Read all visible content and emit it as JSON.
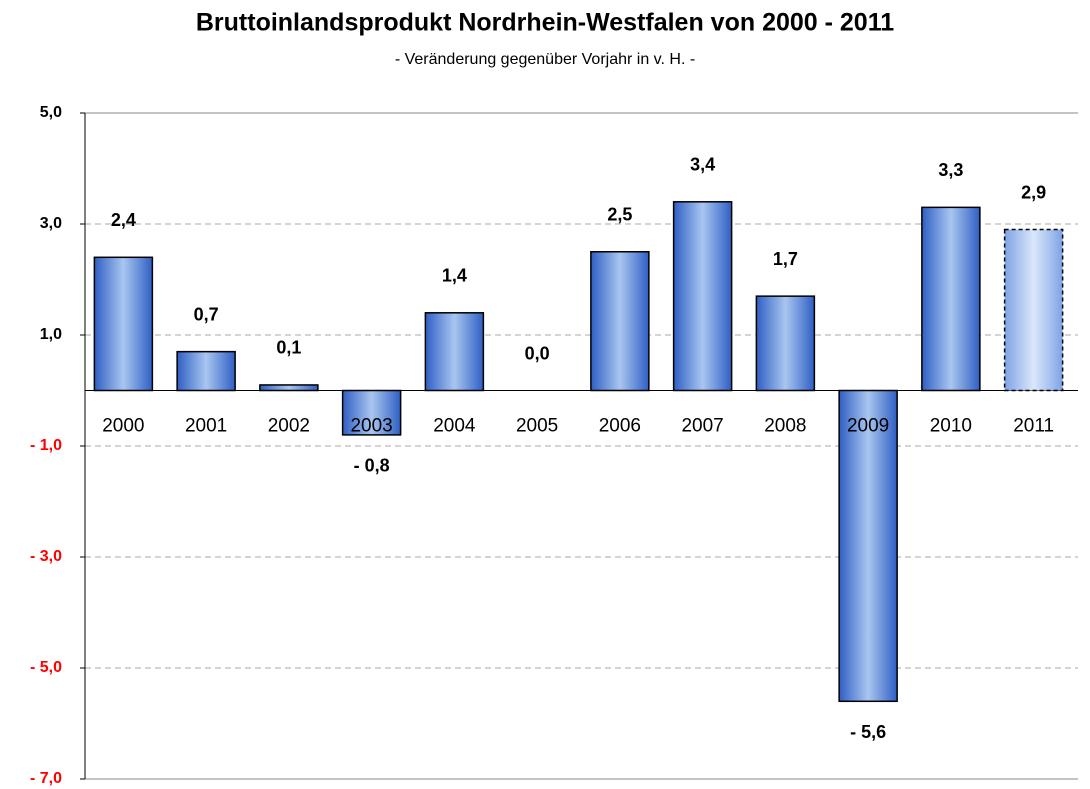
{
  "chart_data": {
    "type": "bar",
    "title": "Bruttoinlandsprodukt Nordrhein-Westfalen von 2000 - 2011",
    "subtitle": "- Veränderung gegenüber Vorjahr in v. H. -",
    "categories": [
      "2000",
      "2001",
      "2002",
      "2003",
      "2004",
      "2005",
      "2006",
      "2007",
      "2008",
      "2009",
      "2010",
      "2011"
    ],
    "values": [
      2.4,
      0.7,
      0.1,
      -0.8,
      1.4,
      0.0,
      2.5,
      3.4,
      1.7,
      -5.6,
      3.3,
      2.9
    ],
    "value_labels": [
      "2,4",
      "0,7",
      "0,1",
      "- 0,8",
      "1,4",
      "0,0",
      "2,5",
      "3,4",
      "1,7",
      "- 5,6",
      "3,3",
      "2,9"
    ],
    "color": "#3f73d6",
    "dashed_bars": [
      11
    ],
    "ylim": [
      -7,
      5
    ],
    "yticks": [
      {
        "value": 5,
        "label": "5,0"
      },
      {
        "value": 3,
        "label": "3,0"
      },
      {
        "value": 1,
        "label": "1,0"
      },
      {
        "value": -1,
        "label": "- 1,0"
      },
      {
        "value": -3,
        "label": "- 3,0"
      },
      {
        "value": -5,
        "label": "- 5,0"
      },
      {
        "value": -7,
        "label": "- 7,0"
      }
    ],
    "negative_tick_color": "#ff0000",
    "grid": true
  }
}
